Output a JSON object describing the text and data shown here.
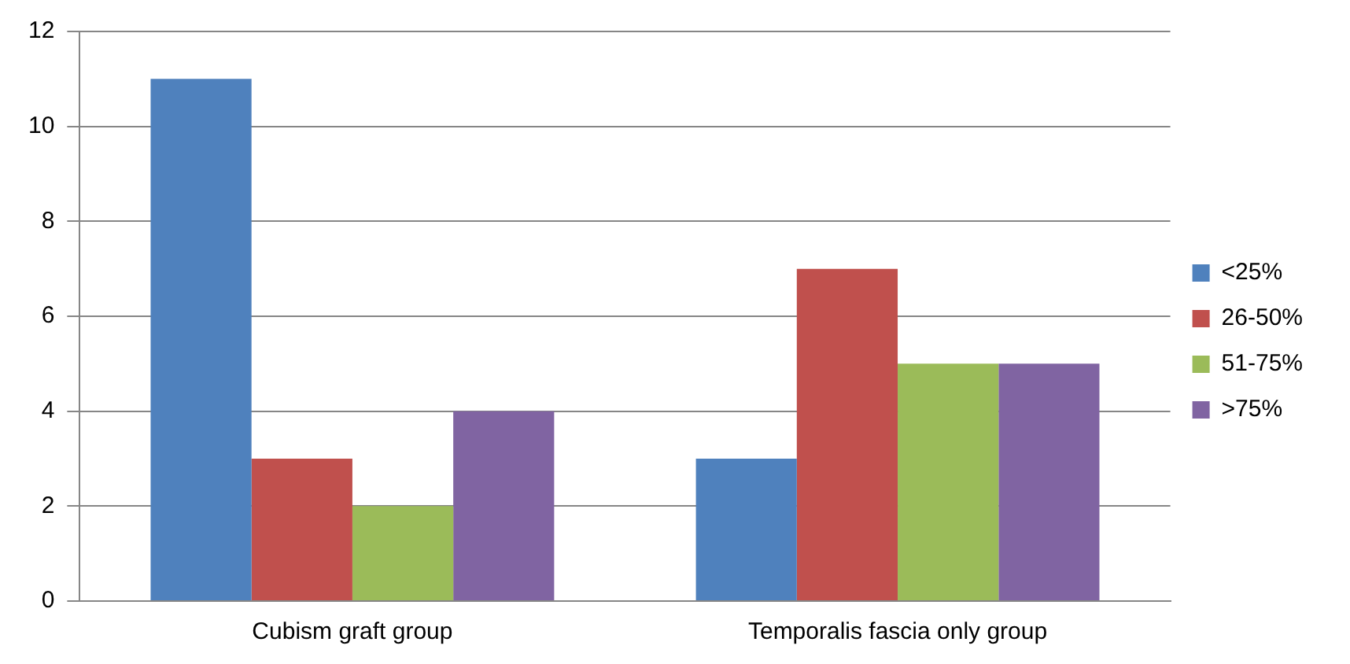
{
  "chart_data": {
    "type": "bar",
    "categories": [
      "Cubism graft group",
      "Temporalis fascia only group"
    ],
    "series": [
      {
        "name": "<25%",
        "color": "#4f81bd",
        "values": [
          11,
          3
        ]
      },
      {
        "name": "26-50%",
        "color": "#c0504d",
        "values": [
          3,
          7
        ]
      },
      {
        "name": "51-75%",
        "color": "#9bbb59",
        "values": [
          2,
          5
        ]
      },
      {
        "name": ">75%",
        "color": "#8064a2",
        "values": [
          4,
          5
        ]
      }
    ],
    "ylim": [
      0,
      12
    ],
    "yticks": [
      0,
      2,
      4,
      6,
      8,
      10,
      12
    ],
    "grid": "y",
    "legend": "right"
  }
}
